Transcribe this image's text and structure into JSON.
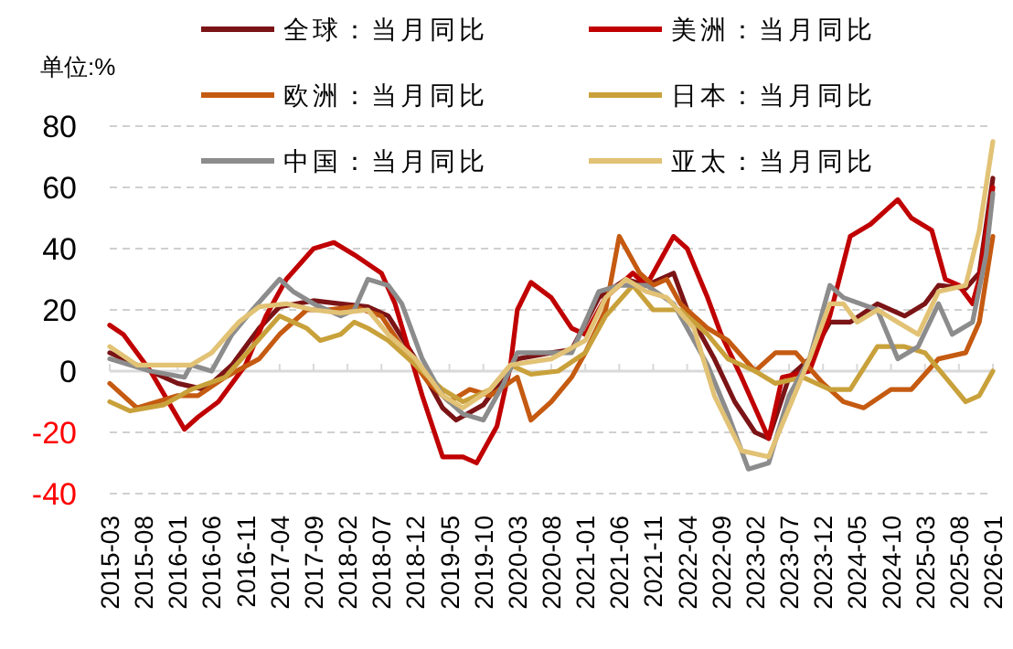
{
  "chart_data": {
    "type": "line",
    "ylabel": "单位:%",
    "legend": "top",
    "grid": "y",
    "marker": "none",
    "line_style": "solid",
    "xlim": [
      "2015-03",
      "2026-01"
    ],
    "ylim": [
      -40,
      80
    ],
    "yticks": [
      -40,
      -20,
      0,
      20,
      40,
      60,
      80
    ],
    "xticks": [
      "2015-03",
      "2015-08",
      "2016-01",
      "2016-06",
      "2016-11",
      "2017-04",
      "2017-09",
      "2018-02",
      "2018-07",
      "2018-12",
      "2019-05",
      "2019-10",
      "2020-03",
      "2020-08",
      "2021-01",
      "2021-06",
      "2021-11",
      "2022-04",
      "2022-09",
      "2023-02",
      "2023-07",
      "2023-12",
      "2024-05",
      "2024-10",
      "2025-03",
      "2025-08",
      "2026-01"
    ],
    "series": [
      {
        "name": "全球：当月同比",
        "color": "#7b1416",
        "x": [
          "2015-03",
          "2015-07",
          "2016-01",
          "2016-05",
          "2016-09",
          "2017-01",
          "2017-04",
          "2017-09",
          "2018-01",
          "2018-05",
          "2018-08",
          "2018-12",
          "2019-04",
          "2019-06",
          "2019-10",
          "2020-03",
          "2020-08",
          "2020-11",
          "2021-03",
          "2021-07",
          "2021-10",
          "2022-02",
          "2022-04",
          "2022-08",
          "2022-11",
          "2023-02",
          "2023-04",
          "2023-07",
          "2023-10",
          "2024-01",
          "2024-04",
          "2024-08",
          "2024-12",
          "2025-03",
          "2025-05",
          "2025-09",
          "2025-11",
          "2026-01"
        ],
        "values": [
          6,
          2,
          -4,
          -6,
          2,
          14,
          21,
          23,
          22,
          21,
          18,
          4,
          -12,
          -16,
          -11,
          4,
          6,
          7,
          24,
          30,
          28,
          32,
          20,
          4,
          -10,
          -20,
          -22,
          -2,
          4,
          16,
          16,
          22,
          18,
          22,
          28,
          27,
          32,
          63
        ]
      },
      {
        "name": "美洲：当月同比",
        "color": "#c00000",
        "x": [
          "2015-03",
          "2015-05",
          "2015-09",
          "2016-02",
          "2016-04",
          "2016-07",
          "2016-11",
          "2017-02",
          "2017-05",
          "2017-09",
          "2017-12",
          "2018-03",
          "2018-07",
          "2018-09",
          "2019-01",
          "2019-04",
          "2019-07",
          "2019-09",
          "2019-12",
          "2020-02",
          "2020-03",
          "2020-05",
          "2020-08",
          "2020-11",
          "2021-01",
          "2021-04",
          "2021-08",
          "2021-10",
          "2022-02",
          "2022-04",
          "2022-07",
          "2022-09",
          "2022-12",
          "2023-04",
          "2023-06",
          "2023-10",
          "2024-01",
          "2024-04",
          "2024-07",
          "2024-11",
          "2025-01",
          "2025-04",
          "2025-06",
          "2025-08",
          "2025-10",
          "2025-11",
          "2026-01"
        ],
        "values": [
          15,
          12,
          0,
          -19,
          -15,
          -10,
          2,
          18,
          30,
          40,
          42,
          38,
          32,
          22,
          -8,
          -28,
          -28,
          -30,
          -18,
          2,
          20,
          29,
          24,
          14,
          12,
          24,
          32,
          28,
          44,
          40,
          24,
          12,
          -2,
          -22,
          -2,
          0,
          18,
          44,
          48,
          56,
          50,
          46,
          30,
          28,
          22,
          30,
          60
        ]
      },
      {
        "name": "欧洲：当月同比",
        "color": "#c55a11",
        "x": [
          "2015-03",
          "2015-07",
          "2016-01",
          "2016-04",
          "2016-08",
          "2017-01",
          "2017-04",
          "2017-08",
          "2017-11",
          "2018-03",
          "2018-07",
          "2018-10",
          "2019-02",
          "2019-05",
          "2019-08",
          "2019-11",
          "2020-03",
          "2020-05",
          "2020-08",
          "2020-11",
          "2021-01",
          "2021-04",
          "2021-06",
          "2021-09",
          "2021-11",
          "2022-01",
          "2022-03",
          "2022-07",
          "2022-10",
          "2023-02",
          "2023-05",
          "2023-08",
          "2023-12",
          "2024-03",
          "2024-06",
          "2024-10",
          "2025-01",
          "2025-05",
          "2025-09",
          "2025-11",
          "2026-01"
        ],
        "values": [
          -4,
          -12,
          -8,
          -8,
          -2,
          4,
          12,
          20,
          20,
          21,
          18,
          8,
          -4,
          -10,
          -6,
          -8,
          -2,
          -16,
          -10,
          -2,
          6,
          20,
          44,
          32,
          28,
          30,
          22,
          14,
          10,
          0,
          6,
          6,
          -4,
          -10,
          -12,
          -6,
          -6,
          4,
          6,
          16,
          44
        ]
      },
      {
        "name": "日本：当月同比",
        "color": "#c9a13b",
        "x": [
          "2015-03",
          "2015-06",
          "2015-11",
          "2016-03",
          "2016-08",
          "2016-12",
          "2017-04",
          "2017-08",
          "2017-10",
          "2018-01",
          "2018-03",
          "2018-05",
          "2018-08",
          "2018-12",
          "2019-04",
          "2019-07",
          "2019-11",
          "2020-02",
          "2020-05",
          "2020-09",
          "2021-01",
          "2021-04",
          "2021-08",
          "2021-11",
          "2022-03",
          "2022-07",
          "2022-10",
          "2023-02",
          "2023-05",
          "2023-09",
          "2024-01",
          "2024-04",
          "2024-08",
          "2024-12",
          "2025-03",
          "2025-06",
          "2025-09",
          "2025-11",
          "2026-01"
        ],
        "values": [
          -10,
          -13,
          -11,
          -6,
          -2,
          8,
          18,
          14,
          10,
          12,
          16,
          14,
          10,
          2,
          -6,
          -10,
          -6,
          2,
          -1,
          0,
          6,
          18,
          28,
          20,
          20,
          12,
          4,
          0,
          -4,
          -2,
          -6,
          -6,
          8,
          8,
          6,
          -2,
          -10,
          -8,
          0
        ]
      },
      {
        "name": "中国：当月同比",
        "color": "#8c8c8c",
        "x": [
          "2015-03",
          "2015-09",
          "2016-02",
          "2016-03",
          "2016-06",
          "2016-09",
          "2016-12",
          "2017-04",
          "2017-06",
          "2017-09",
          "2018-01",
          "2018-03",
          "2018-05",
          "2018-08",
          "2018-10",
          "2019-01",
          "2019-04",
          "2019-07",
          "2019-10",
          "2020-01",
          "2020-03",
          "2020-08",
          "2020-11",
          "2021-03",
          "2021-06",
          "2021-10",
          "2022-02",
          "2022-07",
          "2022-10",
          "2023-01",
          "2023-04",
          "2023-07",
          "2023-10",
          "2024-01",
          "2024-03",
          "2024-08",
          "2024-11",
          "2025-02",
          "2025-05",
          "2025-07",
          "2025-10",
          "2025-12",
          "2026-01"
        ],
        "values": [
          4,
          0,
          -2,
          2,
          0,
          12,
          20,
          30,
          26,
          22,
          18,
          20,
          30,
          28,
          22,
          4,
          -8,
          -14,
          -16,
          -4,
          6,
          6,
          6,
          26,
          28,
          28,
          22,
          2,
          -14,
          -32,
          -30,
          -8,
          4,
          28,
          24,
          20,
          4,
          8,
          22,
          12,
          16,
          38,
          58
        ]
      },
      {
        "name": "亚太：当月同比",
        "color": "#e2c275",
        "x": [
          "2015-03",
          "2015-07",
          "2015-11",
          "2016-03",
          "2016-06",
          "2016-10",
          "2017-01",
          "2017-05",
          "2017-09",
          "2018-01",
          "2018-05",
          "2018-08",
          "2018-12",
          "2019-04",
          "2019-07",
          "2019-11",
          "2020-02",
          "2020-08",
          "2021-01",
          "2021-04",
          "2021-07",
          "2021-10",
          "2022-01",
          "2022-05",
          "2022-08",
          "2022-12",
          "2023-04",
          "2023-07",
          "2023-10",
          "2024-01",
          "2024-03",
          "2024-05",
          "2024-08",
          "2024-11",
          "2025-02",
          "2025-05",
          "2025-09",
          "2025-11",
          "2026-01"
        ],
        "values": [
          8,
          2,
          2,
          2,
          6,
          16,
          21,
          22,
          20,
          19,
          20,
          12,
          4,
          -8,
          -12,
          -6,
          2,
          4,
          10,
          24,
          30,
          26,
          24,
          14,
          -8,
          -26,
          -28,
          -12,
          4,
          22,
          22,
          16,
          20,
          16,
          12,
          26,
          28,
          46,
          75
        ]
      }
    ]
  }
}
